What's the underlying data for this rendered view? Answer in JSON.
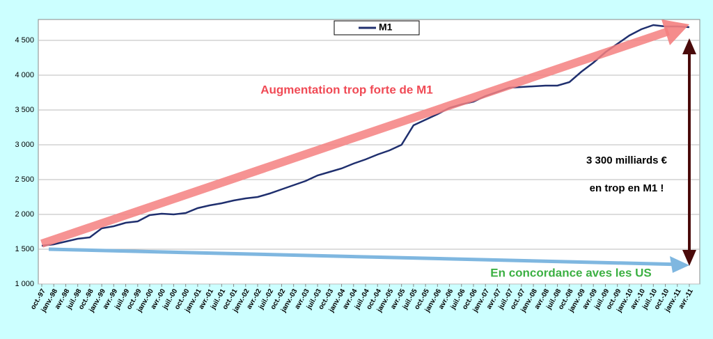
{
  "chart_data": {
    "type": "line",
    "categories": [
      "oct.-97",
      "janv.-98",
      "avr.-98",
      "juil.-98",
      "oct.-98",
      "janv.-99",
      "avr.-99",
      "juil.-99",
      "oct.-99",
      "janv.-00",
      "avr.-00",
      "juil.-00",
      "oct.-00",
      "janv.-01",
      "avr.-01",
      "juil.-01",
      "oct.-01",
      "janv.-02",
      "avr.-02",
      "juil.-02",
      "oct.-02",
      "janv.-03",
      "avr.-03",
      "juil.-03",
      "oct.-03",
      "janv.-04",
      "avr.-04",
      "juil.-04",
      "oct.-04",
      "janv.-05",
      "avr.-05",
      "juil.-05",
      "oct.-05",
      "janv.-06",
      "avr.-06",
      "juil.-06",
      "oct.-06",
      "janv.-07",
      "avr.-07",
      "juil.-07",
      "oct.-07",
      "janv.-08",
      "avr.-08",
      "juil.-08",
      "oct.-08",
      "janv.-09",
      "avr.-09",
      "juil.-09",
      "oct.-09",
      "janv.-10",
      "avr.-10",
      "juil.-10",
      "oct.-10",
      "janv.-11",
      "avr.-11"
    ],
    "series": [
      {
        "name": "M1",
        "color": "#1f2f6e",
        "values": [
          1550,
          1570,
          1610,
          1650,
          1670,
          1800,
          1830,
          1880,
          1900,
          1990,
          2010,
          2000,
          2020,
          2090,
          2130,
          2160,
          2200,
          2230,
          2250,
          2300,
          2360,
          2420,
          2480,
          2560,
          2610,
          2660,
          2730,
          2790,
          2860,
          2920,
          3000,
          3280,
          3360,
          3440,
          3530,
          3580,
          3620,
          3700,
          3760,
          3820,
          3830,
          3840,
          3850,
          3850,
          3900,
          4050,
          4180,
          4330,
          4450,
          4570,
          4660,
          4720,
          4700,
          4700,
          4690
        ]
      }
    ],
    "ylim": [
      1000,
      4800
    ],
    "yticks": [
      {
        "value": 1000,
        "label": "1 000"
      },
      {
        "value": 1500,
        "label": "1 500"
      },
      {
        "value": 2000,
        "label": "2 000"
      },
      {
        "value": 2500,
        "label": "2 500"
      },
      {
        "value": 3000,
        "label": "3 000"
      },
      {
        "value": 3500,
        "label": "3 500"
      },
      {
        "value": 4000,
        "label": "4 000"
      },
      {
        "value": 4500,
        "label": "4 500"
      }
    ],
    "grid": true,
    "legend": "top",
    "annotations": [
      "Augmentation trop forte de M1",
      "3 300 milliards €",
      "en trop en M1 !",
      "En concordance aves les US"
    ]
  }
}
